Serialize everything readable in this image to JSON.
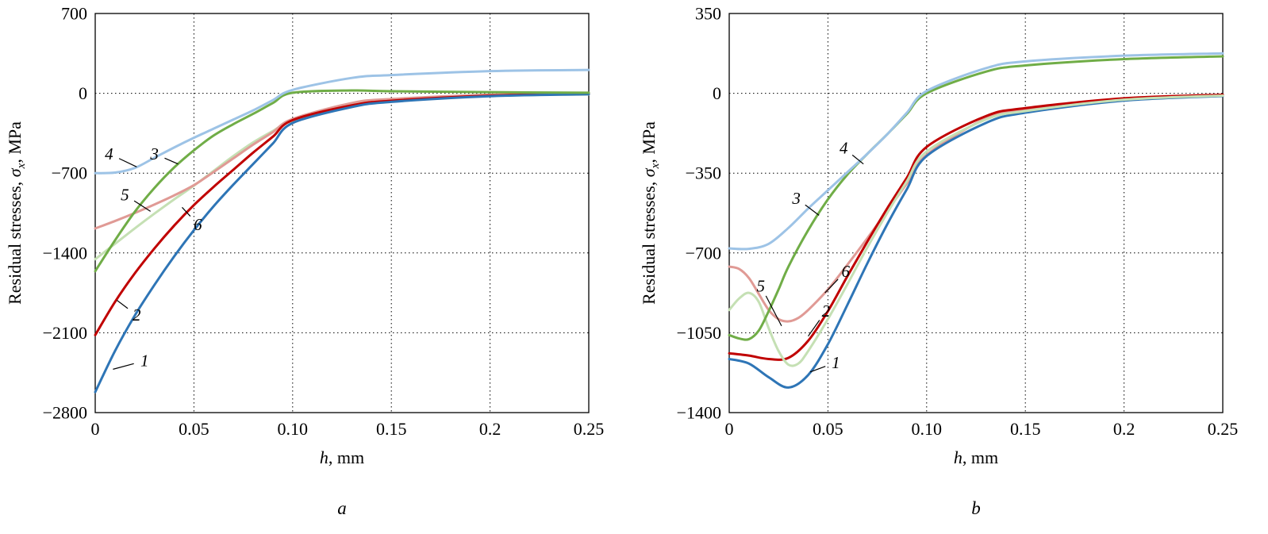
{
  "page": {
    "background": "#ffffff"
  },
  "chart_data": [
    {
      "id": "a",
      "type": "line",
      "panel_letter": "a",
      "xlabel_parts": {
        "var": "h",
        "rest": ", mm"
      },
      "ylabel_parts": {
        "prefix": "Residual stresses, ",
        "sym": "σ",
        "sub": "x",
        "suffix": ", MPa"
      },
      "xlim": [
        0,
        0.25
      ],
      "ylim": [
        -2800,
        700
      ],
      "grid": "dotted",
      "legend": "none",
      "xticks": {
        "values": [
          0,
          0.05,
          0.1,
          0.15,
          0.2,
          0.25
        ],
        "labels": [
          "0",
          "0.05",
          "0.10",
          "0.15",
          "0.2",
          "0.25"
        ]
      },
      "yticks": {
        "values": [
          700,
          0,
          -700,
          -1400,
          -2100,
          -2800
        ],
        "labels": [
          "700",
          "0",
          "−700",
          "−1400",
          "−2100",
          "−2800"
        ]
      },
      "series": [
        {
          "name": "5",
          "color": "#c5e0b4",
          "width": 3,
          "x": [
            0,
            0.01,
            0.02,
            0.03,
            0.04,
            0.05,
            0.06,
            0.07,
            0.08,
            0.09,
            0.1,
            0.13,
            0.15,
            0.2,
            0.25
          ],
          "y": [
            -1455,
            -1320,
            -1185,
            -1055,
            -930,
            -810,
            -680,
            -550,
            -430,
            -330,
            -240,
            -95,
            -60,
            -22,
            -10
          ]
        },
        {
          "name": "6",
          "color": "#e09a95",
          "width": 3,
          "x": [
            0,
            0.01,
            0.02,
            0.03,
            0.04,
            0.05,
            0.06,
            0.07,
            0.08,
            0.09,
            0.1,
            0.13,
            0.15,
            0.2,
            0.25
          ],
          "y": [
            -1185,
            -1120,
            -1050,
            -975,
            -895,
            -805,
            -690,
            -570,
            -450,
            -340,
            -225,
            -85,
            -50,
            -12,
            -2
          ]
        },
        {
          "name": "2",
          "color": "#c00000",
          "width": 3,
          "x": [
            0,
            0.01,
            0.02,
            0.03,
            0.04,
            0.05,
            0.06,
            0.07,
            0.08,
            0.09,
            0.1,
            0.13,
            0.15,
            0.2,
            0.25
          ],
          "y": [
            -2120,
            -1830,
            -1580,
            -1360,
            -1160,
            -980,
            -820,
            -670,
            -520,
            -380,
            -235,
            -105,
            -65,
            -20,
            -5
          ]
        },
        {
          "name": "1",
          "color": "#2e75b6",
          "width": 3,
          "x": [
            0,
            0.01,
            0.02,
            0.03,
            0.04,
            0.05,
            0.06,
            0.07,
            0.08,
            0.09,
            0.1,
            0.13,
            0.15,
            0.2,
            0.25
          ],
          "y": [
            -2620,
            -2260,
            -1950,
            -1680,
            -1430,
            -1200,
            -990,
            -800,
            -620,
            -440,
            -260,
            -120,
            -75,
            -25,
            -8
          ]
        },
        {
          "name": "3",
          "color": "#70ad47",
          "width": 3,
          "x": [
            0,
            0.01,
            0.02,
            0.03,
            0.04,
            0.05,
            0.06,
            0.07,
            0.08,
            0.09,
            0.1,
            0.13,
            0.15,
            0.2,
            0.25
          ],
          "y": [
            -1560,
            -1290,
            -1040,
            -830,
            -650,
            -500,
            -370,
            -270,
            -180,
            -85,
            5,
            25,
            18,
            10,
            5
          ]
        },
        {
          "name": "4",
          "color": "#9dc3e6",
          "width": 3,
          "x": [
            0,
            0.01,
            0.02,
            0.03,
            0.04,
            0.05,
            0.06,
            0.07,
            0.08,
            0.09,
            0.1,
            0.13,
            0.15,
            0.2,
            0.25
          ],
          "y": [
            -700,
            -695,
            -655,
            -565,
            -475,
            -390,
            -310,
            -230,
            -150,
            -60,
            30,
            135,
            160,
            195,
            205
          ]
        }
      ],
      "annotations": [
        {
          "t": "4",
          "x": 0.007,
          "y": -530,
          "ex": 0.021,
          "ey": -645
        },
        {
          "t": "3",
          "x": 0.03,
          "y": -530,
          "ex": 0.042,
          "ey": -620
        },
        {
          "t": "5",
          "x": 0.015,
          "y": -890,
          "ex": 0.028,
          "ey": -1035
        },
        {
          "t": "6",
          "x": 0.052,
          "y": -1150,
          "ex": 0.044,
          "ey": -1000
        },
        {
          "t": "2",
          "x": 0.021,
          "y": -1945,
          "ex": 0.011,
          "ey": -1815
        },
        {
          "t": "1",
          "x": 0.025,
          "y": -2345,
          "ex": 0.009,
          "ey": -2420
        }
      ]
    },
    {
      "id": "b",
      "type": "line",
      "panel_letter": "b",
      "xlabel_parts": {
        "var": "h",
        "rest": ", mm"
      },
      "ylabel_parts": {
        "prefix": "Residual stresses, ",
        "sym": "σ",
        "sub": "x",
        "suffix": ", MPa"
      },
      "xlim": [
        0,
        0.25
      ],
      "ylim": [
        -1400,
        350
      ],
      "grid": "dotted",
      "legend": "none",
      "xticks": {
        "values": [
          0,
          0.05,
          0.1,
          0.15,
          0.2,
          0.25
        ],
        "labels": [
          "0",
          "0.05",
          "0.10",
          "0.15",
          "0.2",
          "0.25"
        ]
      },
      "yticks": {
        "values": [
          350,
          0,
          -350,
          -700,
          -1050,
          -1400
        ],
        "labels": [
          "350",
          "0",
          "−350",
          "−700",
          "−1050",
          "−1400"
        ]
      },
      "series": [
        {
          "name": "6",
          "color": "#e09a95",
          "width": 3,
          "x": [
            0,
            0.005,
            0.01,
            0.015,
            0.02,
            0.025,
            0.03,
            0.035,
            0.04,
            0.05,
            0.06,
            0.07,
            0.08,
            0.09,
            0.1,
            0.13,
            0.15,
            0.2,
            0.25
          ],
          "y": [
            -760,
            -770,
            -810,
            -880,
            -950,
            -990,
            -1000,
            -985,
            -950,
            -860,
            -750,
            -635,
            -515,
            -395,
            -270,
            -110,
            -70,
            -25,
            -8
          ]
        },
        {
          "name": "2",
          "color": "#c00000",
          "width": 3,
          "x": [
            0,
            0.01,
            0.02,
            0.03,
            0.04,
            0.05,
            0.06,
            0.07,
            0.08,
            0.09,
            0.1,
            0.13,
            0.15,
            0.2,
            0.25
          ],
          "y": [
            -1140,
            -1150,
            -1165,
            -1160,
            -1085,
            -955,
            -800,
            -650,
            -505,
            -370,
            -235,
            -100,
            -65,
            -22,
            -6
          ]
        },
        {
          "name": "1",
          "color": "#2e75b6",
          "width": 3,
          "x": [
            0,
            0.01,
            0.02,
            0.03,
            0.04,
            0.05,
            0.06,
            0.07,
            0.08,
            0.09,
            0.1,
            0.13,
            0.15,
            0.2,
            0.25
          ],
          "y": [
            -1165,
            -1185,
            -1245,
            -1290,
            -1235,
            -1100,
            -925,
            -745,
            -575,
            -420,
            -275,
            -130,
            -85,
            -32,
            -12
          ]
        },
        {
          "name": "5",
          "color": "#c5e0b4",
          "width": 3,
          "x": [
            0,
            0.005,
            0.01,
            0.015,
            0.02,
            0.025,
            0.03,
            0.035,
            0.04,
            0.05,
            0.06,
            0.07,
            0.08,
            0.09,
            0.1,
            0.13,
            0.15,
            0.2,
            0.25
          ],
          "y": [
            -950,
            -900,
            -875,
            -915,
            -1030,
            -1130,
            -1190,
            -1185,
            -1130,
            -990,
            -835,
            -675,
            -525,
            -385,
            -255,
            -115,
            -78,
            -28,
            -10
          ]
        },
        {
          "name": "3",
          "color": "#70ad47",
          "width": 3,
          "x": [
            0,
            0.005,
            0.01,
            0.015,
            0.02,
            0.025,
            0.03,
            0.04,
            0.05,
            0.06,
            0.07,
            0.08,
            0.09,
            0.1,
            0.13,
            0.15,
            0.2,
            0.25
          ],
          "y": [
            -1060,
            -1075,
            -1078,
            -1040,
            -955,
            -860,
            -760,
            -600,
            -465,
            -355,
            -265,
            -180,
            -90,
            0,
            95,
            122,
            150,
            162
          ]
        },
        {
          "name": "4",
          "color": "#9dc3e6",
          "width": 3,
          "x": [
            0,
            0.01,
            0.02,
            0.03,
            0.04,
            0.05,
            0.06,
            0.07,
            0.08,
            0.09,
            0.1,
            0.13,
            0.15,
            0.2,
            0.25
          ],
          "y": [
            -680,
            -682,
            -660,
            -590,
            -505,
            -425,
            -345,
            -265,
            -180,
            -85,
            10,
            110,
            140,
            165,
            175
          ]
        }
      ],
      "annotations": [
        {
          "t": "4",
          "x": 0.058,
          "y": -240,
          "ex": 0.068,
          "ey": -310
        },
        {
          "t": "3",
          "x": 0.034,
          "y": -460,
          "ex": 0.0455,
          "ey": -535
        },
        {
          "t": "5",
          "x": 0.016,
          "y": -845,
          "ex": 0.0265,
          "ey": -1020
        },
        {
          "t": "6",
          "x": 0.059,
          "y": -780,
          "ex": 0.0485,
          "ey": -875
        },
        {
          "t": "2",
          "x": 0.049,
          "y": -955,
          "ex": 0.04,
          "ey": -1065
        },
        {
          "t": "1",
          "x": 0.054,
          "y": -1180,
          "ex": 0.041,
          "ey": -1222
        }
      ]
    }
  ]
}
